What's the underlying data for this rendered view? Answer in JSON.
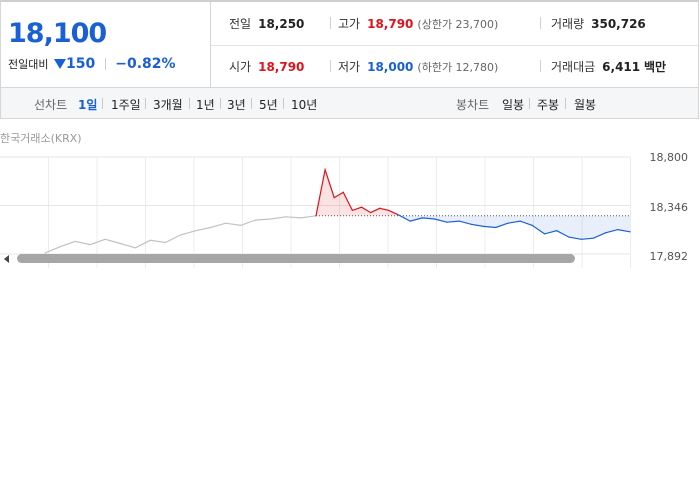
{
  "price": {
    "current": "18,100",
    "change_label": "전일대비",
    "change_amount": "150",
    "change_percent": "−0.82%"
  },
  "info": {
    "prev_close": {
      "label": "전일",
      "value": "18,250"
    },
    "high": {
      "label": "고가",
      "value": "18,790",
      "sub": "(상한가 23,700)"
    },
    "volume": {
      "label": "거래량",
      "value": "350,726"
    },
    "open": {
      "label": "시가",
      "value": "18,790"
    },
    "low": {
      "label": "저가",
      "value": "18,000",
      "sub": "(하한가 12,780)"
    },
    "amount": {
      "label": "거래대금",
      "value": "6,411",
      "unit": "백만"
    }
  },
  "tabs": {
    "period_title": "선차트",
    "period": [
      "1일",
      "1주일",
      "3개월",
      "1년",
      "3년",
      "5년",
      "10년"
    ],
    "active": "1일",
    "candle_title": "봉차트",
    "candle": [
      "일봉",
      "주봉",
      "월봉"
    ]
  },
  "chart": {
    "source": "한국거래소(KRX)",
    "y_ticks": [
      "18,800",
      "18,346",
      "17,892"
    ]
  },
  "chart_data": {
    "type": "line",
    "title": "",
    "xlabel": "",
    "ylabel": "",
    "ylim": [
      17892,
      18800
    ],
    "reference_value": 18250,
    "series": [
      {
        "values": [
          17900,
          17960,
          18010,
          17980,
          18030,
          17990,
          17950,
          18020,
          18000,
          18070,
          18110,
          18140,
          18180,
          18160,
          18210,
          18220,
          18240,
          18230,
          18250
        ]
      },
      {
        "values": [
          18250,
          18680,
          18420,
          18470,
          18300,
          18330,
          18280,
          18320,
          18300,
          18260
        ]
      },
      {
        "values": [
          18260,
          18200,
          18230,
          18220,
          18190,
          18200,
          18170,
          18150,
          18140,
          18180,
          18200,
          18160,
          18080,
          18110,
          18050,
          18030,
          18040,
          18090,
          18120,
          18100
        ]
      }
    ]
  },
  "colors": {
    "up": "#e0121c",
    "down": "#1a5fd6",
    "past": "#c2c2c2"
  }
}
